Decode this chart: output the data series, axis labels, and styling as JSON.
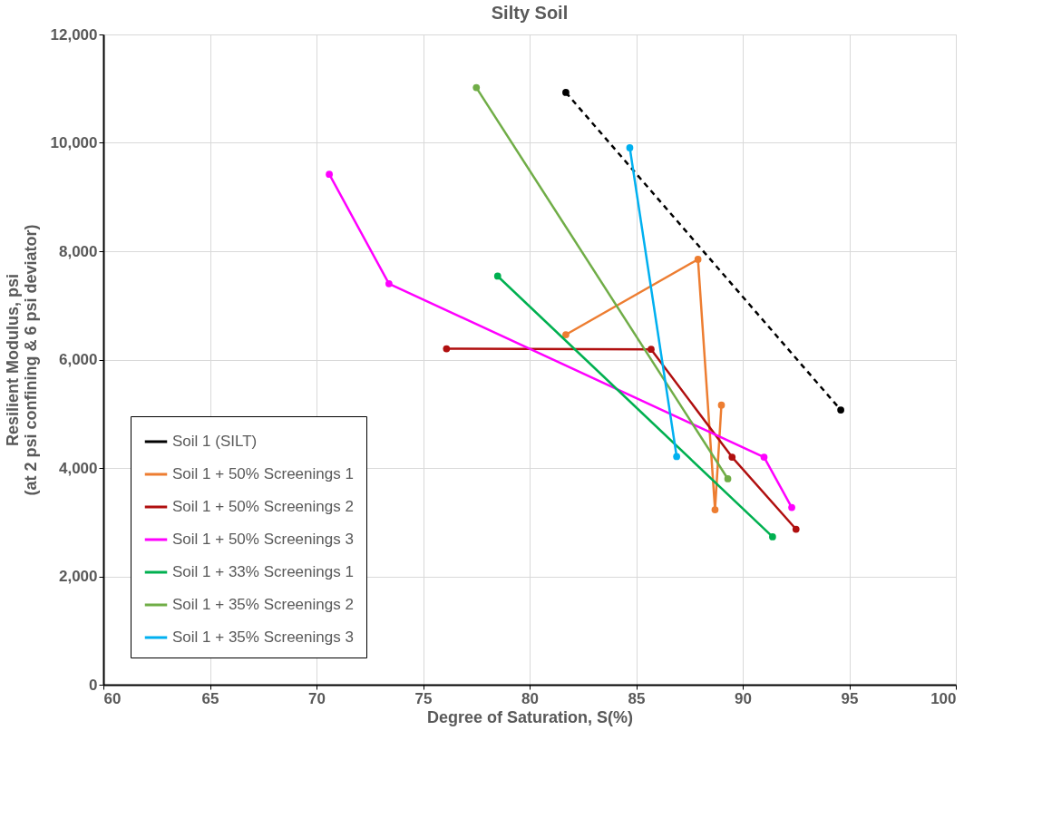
{
  "chart_data": {
    "type": "line",
    "title": "Silty Soil",
    "xlabel": "Degree of Saturation, S(%)",
    "ylabel": "Resilient Modulus, psi\n(at 2 psi confining & 6 psi deviator)",
    "xlim": [
      60,
      100
    ],
    "xticks": [
      60,
      65,
      70,
      75,
      80,
      85,
      90,
      95,
      100
    ],
    "ylim": [
      0,
      12000
    ],
    "yticks": [
      0,
      {
        "value": 2000,
        "label": "2,000"
      },
      {
        "value": 4000,
        "label": "4,000"
      },
      {
        "value": 6000,
        "label": "6,000"
      },
      {
        "value": 8000,
        "label": "8,000"
      },
      {
        "value": 10000,
        "label": "10,000"
      },
      {
        "value": 12000,
        "label": "12,000"
      }
    ],
    "grid": true,
    "legend": "bottom left",
    "marker": "circle",
    "series": [
      {
        "name": "Soil 1 (SILT)",
        "color": "#000000",
        "line_style": "dashed",
        "x": [
          81.7,
          94.6
        ],
        "values": [
          10930,
          5070
        ]
      },
      {
        "name": "Soil 1 + 50% Screenings 1",
        "color": "#ed7d31",
        "x": [
          81.7,
          87.9,
          88.7,
          89.0
        ],
        "values": [
          6460,
          7850,
          3230,
          5160
        ]
      },
      {
        "name": "Soil 1 + 50% Screenings 2",
        "color": "#b00f0f",
        "x": [
          76.1,
          85.7,
          89.5,
          92.5
        ],
        "values": [
          6200,
          6190,
          4200,
          2870
        ]
      },
      {
        "name": "Soil 1 + 50% Screenings 3",
        "color": "#ff00ff",
        "x": [
          70.6,
          73.4,
          91.0,
          92.3
        ],
        "values": [
          9420,
          7400,
          4200,
          3270
        ]
      },
      {
        "name": "Soil 1 + 33% Screenings 1",
        "color": "#00b050",
        "x": [
          78.5,
          91.4
        ],
        "values": [
          7540,
          2730
        ]
      },
      {
        "name": "Soil 1 + 35% Screenings 2",
        "color": "#70ad47",
        "x": [
          77.5,
          89.3
        ],
        "values": [
          11020,
          3800
        ]
      },
      {
        "name": "Soil 1 + 35% Screenings 3",
        "color": "#00b0f0",
        "x": [
          84.7,
          86.9
        ],
        "values": [
          9910,
          4210
        ]
      }
    ]
  }
}
